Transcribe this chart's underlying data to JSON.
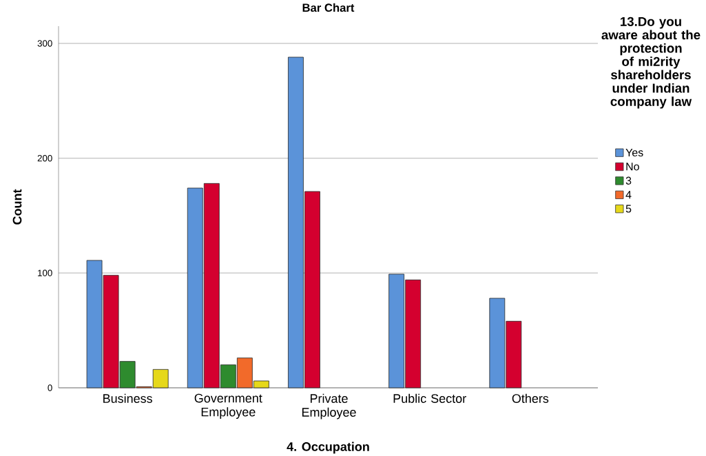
{
  "chart_data": {
    "type": "bar",
    "title": "Bar Chart",
    "xlabel": "4. Occupation",
    "ylabel": "Count",
    "legend_title": "13.Do you aware about the protection of mi2rity shareholders under Indian company law",
    "categories": [
      "Business",
      "Government Employee",
      "Private Employee",
      "Public Sector",
      "Others"
    ],
    "series": [
      {
        "name": "Yes",
        "color": "#5b93d9",
        "values": [
          111,
          174,
          288,
          99,
          78
        ]
      },
      {
        "name": "No",
        "color": "#d4002f",
        "values": [
          98,
          178,
          171,
          94,
          58
        ]
      },
      {
        "name": "3",
        "color": "#2e8b2e",
        "values": [
          23,
          20,
          null,
          null,
          null
        ]
      },
      {
        "name": "4",
        "color": "#f26a2a",
        "values": [
          1,
          26,
          null,
          null,
          null
        ]
      },
      {
        "name": "5",
        "color": "#e6d81a",
        "values": [
          16,
          6,
          null,
          null,
          null
        ]
      }
    ],
    "ylim": [
      0,
      315
    ],
    "yticks": [
      0,
      100,
      200,
      300
    ],
    "grid": "y",
    "legend": "right"
  }
}
